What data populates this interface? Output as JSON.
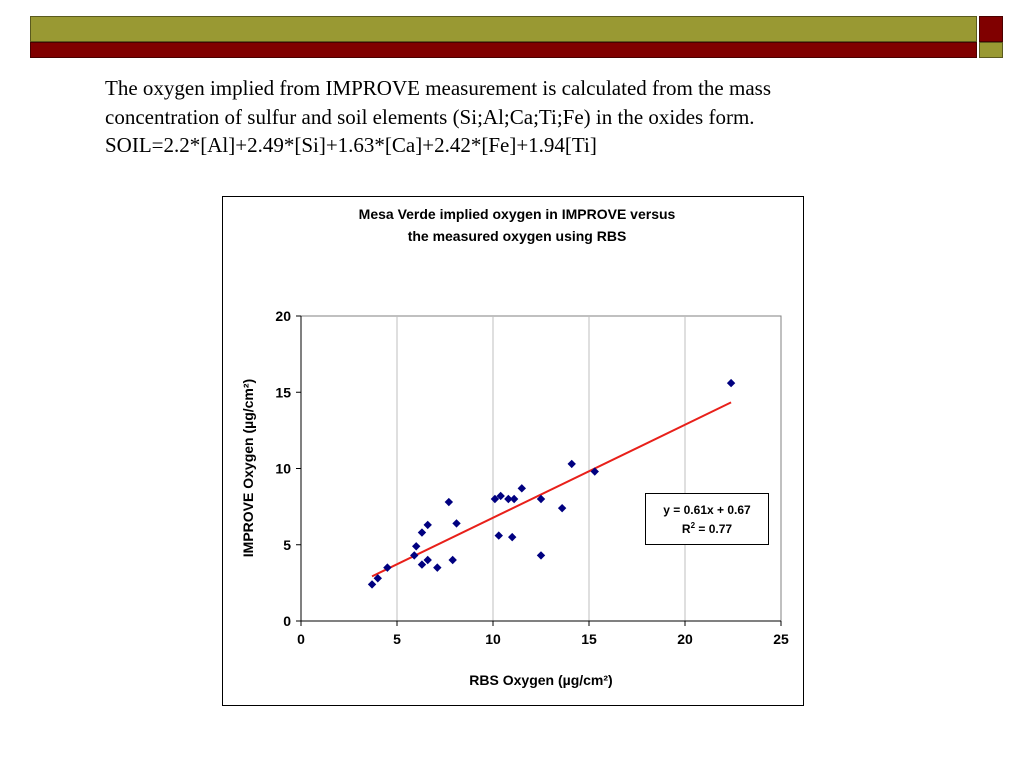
{
  "slide": {
    "colors": {
      "olive": "#999933",
      "maroon": "#800000"
    },
    "text_lines": [
      "The oxygen implied from IMPROVE measurement is calculated from the mass",
      "concentration of sulfur and soil elements (Si;Al;Ca;Ti;Fe) in the oxides form.",
      "SOIL=2.2*[Al]+2.49*[Si]+1.63*[Ca]+2.42*[Fe]+1.94[Ti]"
    ]
  },
  "chart_data": {
    "type": "scatter",
    "title_lines": [
      "Mesa Verde  implied oxygen in IMPROVE versus",
      "the measured oxygen  using RBS"
    ],
    "xlabel": "RBS Oxygen (µg/cm²)",
    "ylabel": "IMPROVE Oxygen (µg/cm²)",
    "xlim": [
      0,
      25
    ],
    "ylim": [
      0,
      20
    ],
    "xticks": [
      0,
      5,
      10,
      15,
      20,
      25
    ],
    "yticks": [
      0,
      5,
      10,
      15,
      20
    ],
    "grid": "vertical",
    "marker_color": "#000080",
    "trendline_color": "#e8201a",
    "points": [
      [
        3.7,
        2.4
      ],
      [
        4.0,
        2.8
      ],
      [
        4.5,
        3.5
      ],
      [
        5.9,
        4.3
      ],
      [
        6.0,
        4.9
      ],
      [
        6.3,
        3.7
      ],
      [
        6.3,
        5.8
      ],
      [
        6.6,
        6.3
      ],
      [
        6.6,
        4.0
      ],
      [
        7.1,
        3.5
      ],
      [
        7.7,
        7.8
      ],
      [
        7.9,
        4.0
      ],
      [
        8.1,
        6.4
      ],
      [
        10.1,
        8.0
      ],
      [
        10.3,
        5.6
      ],
      [
        10.4,
        8.2
      ],
      [
        10.8,
        8.0
      ],
      [
        11.0,
        5.5
      ],
      [
        11.1,
        8.0
      ],
      [
        11.5,
        8.7
      ],
      [
        12.5,
        8.0
      ],
      [
        12.5,
        4.3
      ],
      [
        13.6,
        7.4
      ],
      [
        14.1,
        10.3
      ],
      [
        15.3,
        9.8
      ],
      [
        22.4,
        15.6
      ]
    ],
    "trendline": {
      "slope": 0.61,
      "intercept": 0.67,
      "x_start": 3.7,
      "x_end": 22.4
    },
    "annotation": {
      "equation": "y = 0.61x + 0.67",
      "r2_label": "R",
      "r2_sup": "2",
      "r2_value": " = 0.77"
    }
  }
}
